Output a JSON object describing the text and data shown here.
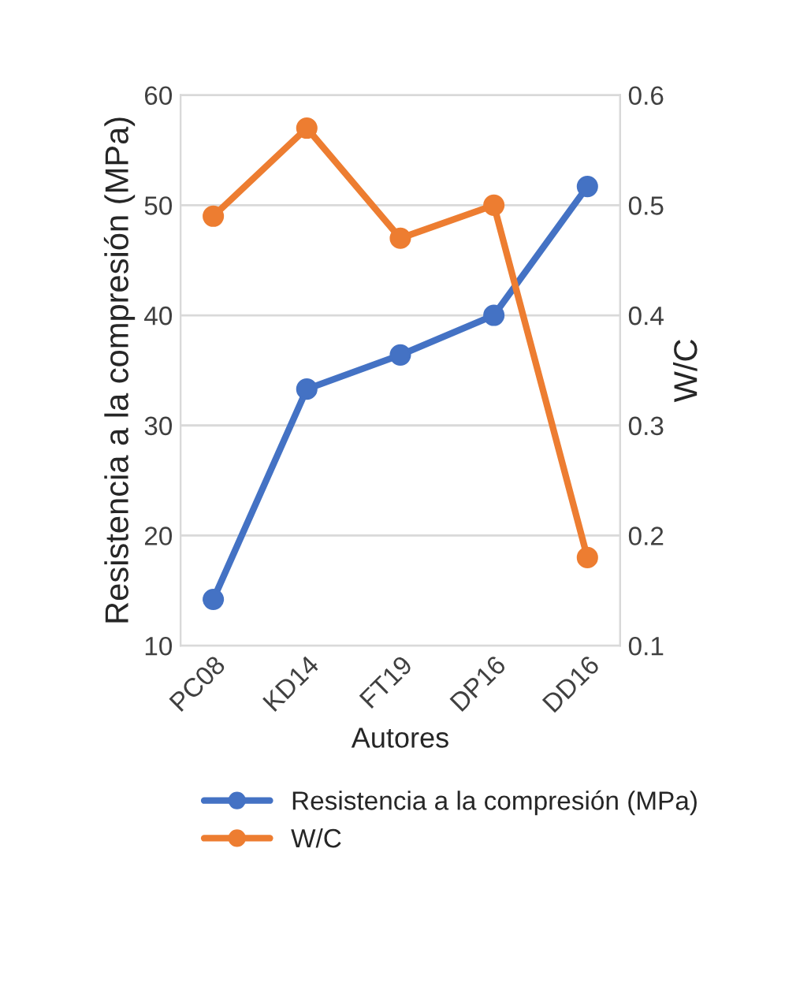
{
  "chart_data": {
    "type": "line",
    "xlabel": "Autores",
    "ylabel": "Resistencia a la compresión (MPa)",
    "y2label": "W/C",
    "categories": [
      "PC08",
      "KD14",
      "FT19",
      "DP16",
      "DD16"
    ],
    "series": [
      {
        "name": "Resistencia a la compresión (MPa)",
        "color": "#4472c4",
        "values": [
          14.2,
          33.3,
          36.4,
          40,
          51.7
        ]
      },
      {
        "name": "W/C",
        "color": "#ed7d31",
        "values": [
          0.49,
          0.57,
          0.47,
          0.5,
          0.18
        ],
        "axis": "y2"
      }
    ],
    "ylim": [
      10,
      60
    ],
    "yticks": [
      10,
      20,
      30,
      40,
      50,
      60
    ],
    "y2lim": [
      0.1,
      0.6
    ],
    "y2ticks": [
      0.1,
      0.2,
      0.3,
      0.4,
      0.5,
      0.6
    ],
    "grid": "y",
    "legend": "bottom",
    "marker": "circle",
    "line_style": "solid"
  }
}
